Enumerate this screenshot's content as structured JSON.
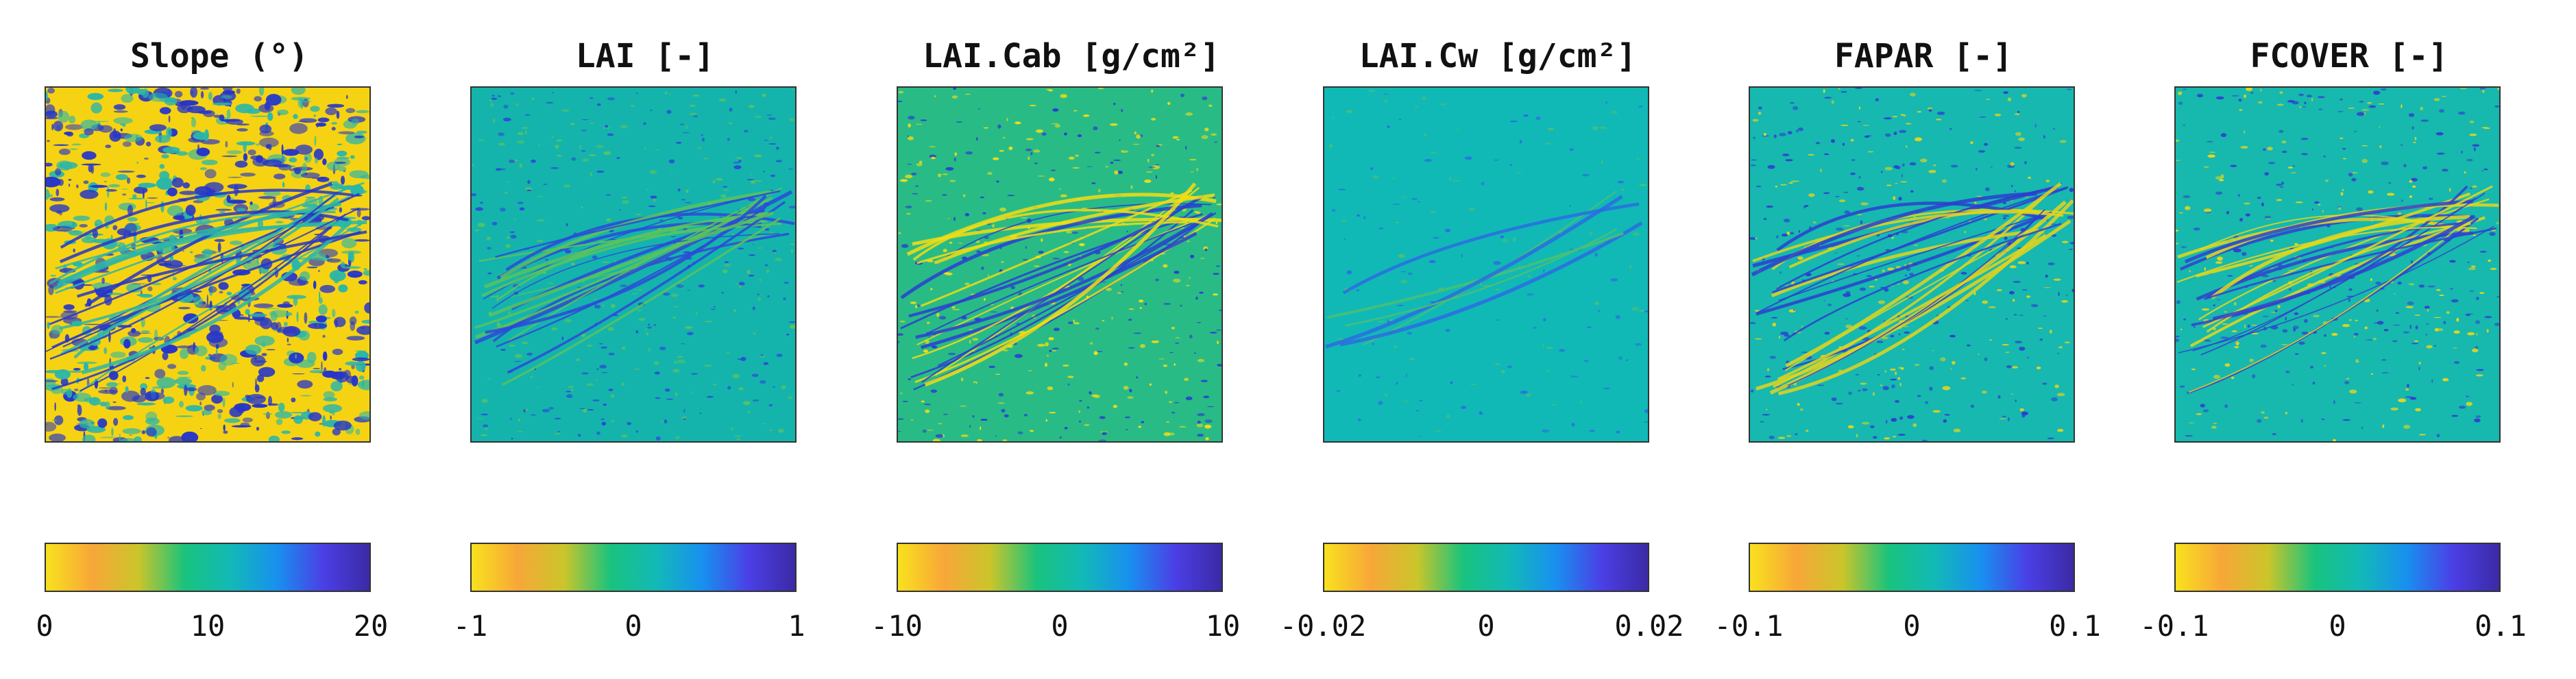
{
  "colormap": {
    "stops": [
      "#f9e11e",
      "#f7a738",
      "#cbc52a",
      "#19c37d",
      "#12b9b7",
      "#1890ef",
      "#4b3fe6",
      "#3b2aa5"
    ]
  },
  "panels": [
    {
      "title": "Slope (°)",
      "ticks": [
        "0",
        "10",
        "20"
      ],
      "dominant": "#f5d312",
      "secondary": "#2635c9",
      "tertiary": "#2bb6a8"
    },
    {
      "title": "LAI [-]",
      "ticks": [
        "-1",
        "0",
        "1"
      ],
      "dominant": "#14b4ad",
      "secondary": "#2c49d8",
      "tertiary": "#5bc35c"
    },
    {
      "title": "LAI.Cab [g/cm²]",
      "ticks": [
        "-10",
        "0",
        "10"
      ],
      "dominant": "#29bb86",
      "secondary": "#f3dd12",
      "tertiary": "#2a3ed1"
    },
    {
      "title": "LAI.Cw [g/cm²]",
      "ticks": [
        "-0.02",
        "0",
        "0.02"
      ],
      "dominant": "#10b9b6",
      "secondary": "#2b6ce2",
      "tertiary": "#4ec070"
    },
    {
      "title": "FAPAR [-]",
      "ticks": [
        "-0.1",
        "0",
        "0.1"
      ],
      "dominant": "#16b8b0",
      "secondary": "#2c3ecf",
      "tertiary": "#e3d41b"
    },
    {
      "title": "FCOVER [-]",
      "ticks": [
        "-0.1",
        "0",
        "0.1"
      ],
      "dominant": "#17b8ae",
      "secondary": "#3140cf",
      "tertiary": "#e7d719"
    }
  ]
}
